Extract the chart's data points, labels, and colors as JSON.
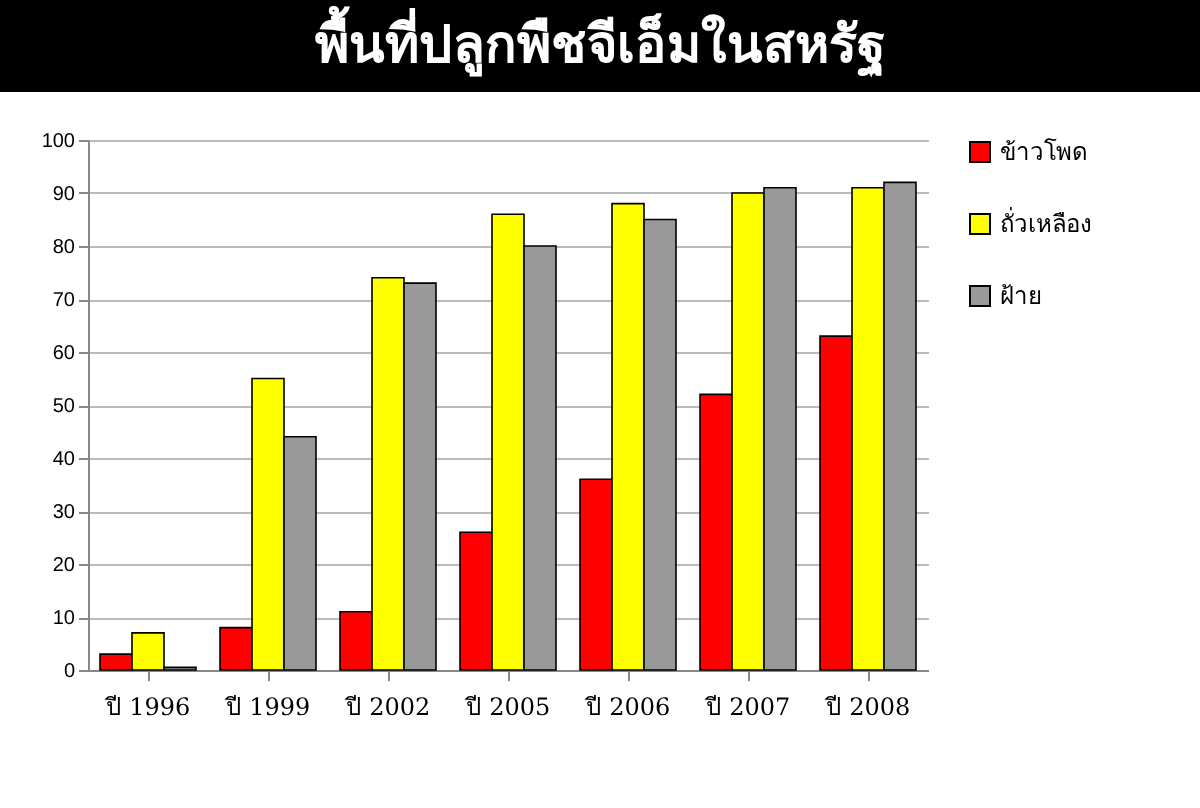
{
  "chart_data": {
    "type": "bar",
    "title": "พื้นที่ปลูกพืชจีเอ็มในสหรัฐ",
    "categories": [
      "ปี 1996",
      "ปี 1999",
      "ปี 2002",
      "ปี 2005",
      "ปี 2006",
      "ปี 2007",
      "ปี 2008"
    ],
    "series": [
      {
        "name": "ข้าวโพด",
        "color": "#ff0000",
        "values": [
          3,
          8,
          11,
          26,
          36,
          52,
          63
        ]
      },
      {
        "name": "ถั่วเหลือง",
        "color": "#ffff00",
        "values": [
          7,
          55,
          74,
          86,
          88,
          90,
          91
        ]
      },
      {
        "name": "ฝ้าย",
        "color": "#999999",
        "values": [
          0.5,
          44,
          73,
          80,
          85,
          91,
          92
        ]
      }
    ],
    "ylim": [
      0,
      100
    ],
    "yticks": [
      0,
      10,
      20,
      30,
      40,
      50,
      60,
      70,
      80,
      90,
      100
    ],
    "grid": "y",
    "legend": "right"
  }
}
